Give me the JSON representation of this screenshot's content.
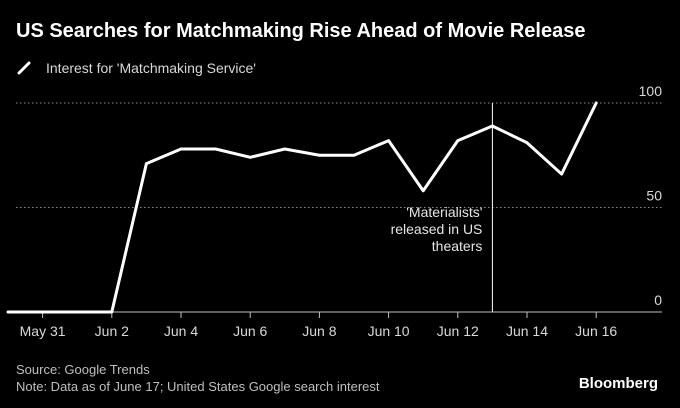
{
  "chart_data": {
    "type": "line",
    "title": "US Searches for Matchmaking Rise Ahead of Movie Release",
    "series": [
      {
        "name": "Interest for 'Matchmaking Service'",
        "x": [
          "May 30",
          "May 31",
          "Jun 1",
          "Jun 2",
          "Jun 3",
          "Jun 4",
          "Jun 5",
          "Jun 6",
          "Jun 7",
          "Jun 8",
          "Jun 9",
          "Jun 10",
          "Jun 11",
          "Jun 12",
          "Jun 13",
          "Jun 14",
          "Jun 15",
          "Jun 16"
        ],
        "values": [
          0,
          0,
          0,
          0,
          71,
          78,
          78,
          74,
          78,
          75,
          75,
          82,
          58,
          82,
          89,
          81,
          66,
          100
        ]
      }
    ],
    "x_tick_labels": [
      "May 31",
      "Jun 2",
      "Jun 4",
      "Jun 6",
      "Jun 8",
      "Jun 10",
      "Jun 12",
      "Jun 14",
      "Jun 16"
    ],
    "y_ticks": [
      0,
      50,
      100
    ],
    "ylim": [
      0,
      100
    ],
    "y_axis_side": "right",
    "grid": "horizontal dotted",
    "annotation": {
      "x": "Jun 13",
      "lines": [
        "'Materialists'",
        "released in US",
        "theaters"
      ]
    },
    "colors": {
      "background": "#000000",
      "line": "#ffffff",
      "annotation_line": "#ffffff"
    }
  },
  "footer": {
    "source": "Source: Google Trends",
    "note": "Note: Data as of June 17; United States Google search interest"
  },
  "brand": "Bloomberg"
}
